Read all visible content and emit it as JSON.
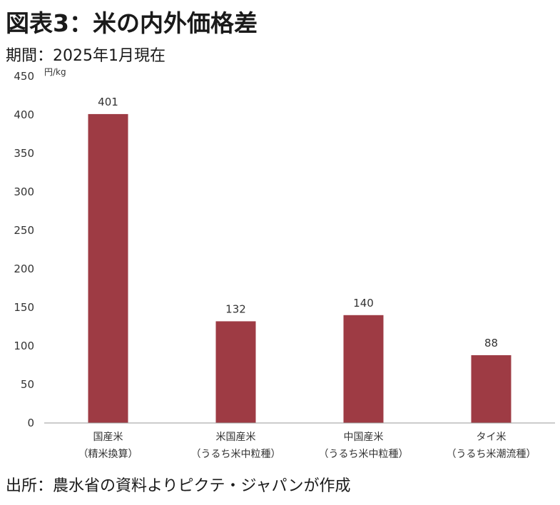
{
  "title": "図表3：米の内外価格差",
  "subtitle": "期間：2025年1月現在",
  "source": "出所：農水省の資料よりピクテ・ジャパンが作成",
  "chart_data": {
    "type": "bar",
    "title": "図表3：米の内外価格差",
    "subtitle": "期間：2025年1月現在",
    "ylabel": "円/kg",
    "xlabel": "",
    "ylim": [
      0,
      450
    ],
    "yticks": [
      0,
      50,
      100,
      150,
      200,
      250,
      300,
      350,
      400,
      450
    ],
    "grid": false,
    "legend": "none",
    "bar_color": "#9e3b44",
    "categories": [
      {
        "line1": "国産米",
        "line2": "（精米換算）"
      },
      {
        "line1": "米国産米",
        "line2": "（うるち米中粒種）"
      },
      {
        "line1": "中国産米",
        "line2": "（うるち米中粒種）"
      },
      {
        "line1": "タイ米",
        "line2": "（うるち米潮流種）"
      }
    ],
    "values": [
      401,
      132,
      140,
      88
    ],
    "data_labels": [
      "401",
      "132",
      "140",
      "88"
    ]
  }
}
